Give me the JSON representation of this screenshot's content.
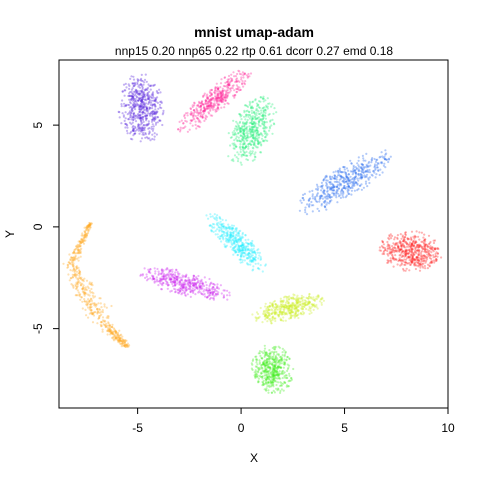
{
  "chart_data": {
    "type": "scatter",
    "title": "mnist umap-adam",
    "subtitle": "nnp15 0.20 nnp65 0.22 rtp 0.61 dcorr 0.27 emd 0.18",
    "xlabel": "X",
    "ylabel": "Y",
    "xlim": [
      -8.8,
      10.0
    ],
    "ylim": [
      -8.9,
      8.2
    ],
    "x_ticks": [
      -5,
      0,
      5,
      10
    ],
    "y_ticks": [
      -5,
      0,
      5
    ],
    "grid": false,
    "legend": "none",
    "clusters": [
      {
        "color": "#5522dd",
        "cx": -4.8,
        "cy": 5.8,
        "rx": 1.1,
        "ry": 1.7,
        "angle": 5,
        "n": 520
      },
      {
        "color": "#ff2299",
        "cx": -1.3,
        "cy": 6.2,
        "rx": 2.3,
        "ry": 0.6,
        "angle": 42,
        "n": 430
      },
      {
        "color": "#22ee77",
        "cx": 0.5,
        "cy": 4.7,
        "rx": 1.8,
        "ry": 1.0,
        "angle": 65,
        "n": 470
      },
      {
        "color": "#2266ee",
        "cx": 5.0,
        "cy": 2.2,
        "rx": 2.6,
        "ry": 0.8,
        "angle": 32,
        "n": 460
      },
      {
        "color": "#ff2222",
        "cx": 8.2,
        "cy": -1.2,
        "rx": 1.5,
        "ry": 1.0,
        "angle": -5,
        "n": 500
      },
      {
        "color": "#22eeff",
        "cx": -0.2,
        "cy": -0.8,
        "rx": 2.0,
        "ry": 0.6,
        "angle": -45,
        "n": 400
      },
      {
        "color": "#cc22ee",
        "cx": -2.7,
        "cy": -2.8,
        "rx": 2.3,
        "ry": 0.6,
        "angle": -15,
        "n": 420
      },
      {
        "color": "#ccee22",
        "cx": 2.3,
        "cy": -4.0,
        "rx": 1.8,
        "ry": 0.6,
        "angle": 15,
        "n": 420
      },
      {
        "color": "#44ee22",
        "cx": 1.5,
        "cy": -7.0,
        "rx": 1.0,
        "ry": 1.2,
        "angle": 10,
        "n": 460
      }
    ],
    "arcs": [
      {
        "color": "#ffaa22",
        "points": [
          [
            -7.3,
            0.2
          ],
          [
            -8.2,
            -1.8
          ],
          [
            -7.4,
            -3.6
          ],
          [
            -6.4,
            -5.0
          ],
          [
            -5.5,
            -5.9
          ]
        ],
        "width": 0.55,
        "n": 520
      }
    ]
  }
}
